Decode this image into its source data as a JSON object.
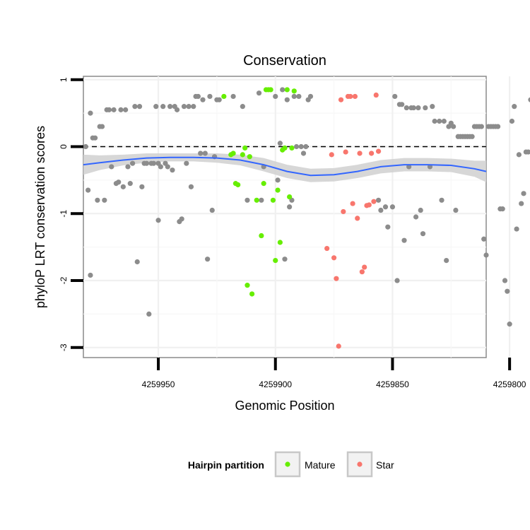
{
  "chart_data": {
    "type": "scatter",
    "title": "Conservation",
    "xlabel": "Genomic Position",
    "ylabel": "phyloP LRT conservation scores",
    "x_reversed": true,
    "xlim": [
      4259810,
      4259982
    ],
    "ylim": [
      -3.15,
      1.05
    ],
    "x_ticks": [
      4259950,
      4259900,
      4259850,
      4259800
    ],
    "x_tick_labels": [
      "4259950",
      "4259900",
      "4259850",
      "4259800"
    ],
    "y_ticks": [
      1,
      0,
      -1,
      -2,
      -3
    ],
    "y_tick_labels": [
      "1",
      "0",
      "-1",
      "-2",
      "-3"
    ],
    "reference_line": {
      "y": 0,
      "style": "dashed"
    },
    "grid": true,
    "legend": {
      "title": "Hairpin partition",
      "position": "bottom",
      "entries": [
        {
          "label": "Mature",
          "color": "#66ee00"
        },
        {
          "label": "Star",
          "color": "#f8766d"
        }
      ]
    },
    "colors": {
      "other": "#8c8c8c",
      "Mature": "#66ee00",
      "Star": "#f8766d",
      "smooth": "#3366ff",
      "band": "#d0d0d0"
    },
    "series": [
      {
        "name": "",
        "group": "other",
        "points": [
          [
            4259981,
            0
          ],
          [
            4259980,
            -0.65
          ],
          [
            4259979,
            0.5
          ],
          [
            4259979,
            -1.92
          ],
          [
            4259978,
            0.13
          ],
          [
            4259977,
            0.13
          ],
          [
            4259976,
            -0.8
          ],
          [
            4259975,
            0.3
          ],
          [
            4259974,
            0.3
          ],
          [
            4259973,
            -0.8
          ],
          [
            4259972,
            0.55
          ],
          [
            4259971,
            0.55
          ],
          [
            4259970,
            -0.3
          ],
          [
            4259969,
            0.55
          ],
          [
            4259968,
            -0.55
          ],
          [
            4259967,
            -0.53
          ],
          [
            4259966,
            0.55
          ],
          [
            4259965,
            -0.6
          ],
          [
            4259964,
            0.55
          ],
          [
            4259963,
            -0.3
          ],
          [
            4259962,
            -0.55
          ],
          [
            4259961,
            -0.25
          ],
          [
            4259960,
            0.6
          ],
          [
            4259959,
            -1.72
          ],
          [
            4259958,
            0.6
          ],
          [
            4259957,
            -0.6
          ],
          [
            4259956,
            -0.25
          ],
          [
            4259955,
            -0.25
          ],
          [
            4259954,
            -2.5
          ],
          [
            4259953,
            -0.25
          ],
          [
            4259952,
            -0.25
          ],
          [
            4259951,
            0.6
          ],
          [
            4259950,
            -0.25
          ],
          [
            4259950,
            -1.1
          ],
          [
            4259949,
            -0.3
          ],
          [
            4259948,
            0.6
          ],
          [
            4259947,
            -0.25
          ],
          [
            4259946,
            -0.3
          ],
          [
            4259945,
            0.6
          ],
          [
            4259944,
            -0.35
          ],
          [
            4259943,
            0.6
          ],
          [
            4259942,
            0.55
          ],
          [
            4259941,
            -1.12
          ],
          [
            4259940,
            -1.08
          ],
          [
            4259939,
            0.6
          ],
          [
            4259938,
            -0.25
          ],
          [
            4259937,
            0.6
          ],
          [
            4259936,
            -0.6
          ],
          [
            4259935,
            0.6
          ],
          [
            4259934,
            0.75
          ],
          [
            4259933,
            0.75
          ],
          [
            4259932,
            -0.1
          ],
          [
            4259931,
            0.7
          ],
          [
            4259930,
            -0.1
          ],
          [
            4259929,
            -1.68
          ],
          [
            4259928,
            0.75
          ],
          [
            4259927,
            -0.95
          ],
          [
            4259926,
            -0.15
          ],
          [
            4259925,
            0.7
          ],
          [
            4259924,
            0.7
          ],
          [
            4259918,
            0.75
          ],
          [
            4259914,
            0.6
          ],
          [
            4259912,
            -0.8
          ],
          [
            4259907,
            0.8
          ],
          [
            4259906,
            -0.8
          ],
          [
            4259905,
            -0.3
          ],
          [
            4259900,
            0.75
          ],
          [
            4259899,
            -0.5
          ],
          [
            4259898,
            0.05
          ],
          [
            4259897,
            0.85
          ],
          [
            4259896,
            -1.68
          ],
          [
            4259895,
            0.7
          ],
          [
            4259894,
            -0.9
          ],
          [
            4259893,
            -0.8
          ],
          [
            4259892,
            0.75
          ],
          [
            4259891,
            0
          ],
          [
            4259890,
            0.75
          ],
          [
            4259889,
            0
          ],
          [
            4259888,
            -0.1
          ],
          [
            4259887,
            0
          ],
          [
            4259886,
            0.7
          ],
          [
            4259885,
            0.75
          ],
          [
            4259856,
            -0.8
          ],
          [
            4259855,
            -0.95
          ],
          [
            4259853,
            -0.9
          ],
          [
            4259852,
            -1.2
          ],
          [
            4259850,
            -0.9
          ],
          [
            4259849,
            0.75
          ],
          [
            4259848,
            -2
          ],
          [
            4259847,
            0.63
          ],
          [
            4259846,
            0.63
          ],
          [
            4259845,
            -1.4
          ],
          [
            4259844,
            0.58
          ],
          [
            4259843,
            -0.3
          ],
          [
            4259842,
            0.58
          ],
          [
            4259841,
            0.58
          ],
          [
            4259840,
            -1.05
          ],
          [
            4259839,
            0.58
          ],
          [
            4259838,
            -0.95
          ],
          [
            4259837,
            -1.3
          ],
          [
            4259836,
            0.58
          ],
          [
            4259834,
            -0.3
          ],
          [
            4259833,
            0.6
          ],
          [
            4259832,
            0.38
          ],
          [
            4259830,
            0.38
          ],
          [
            4259829,
            -0.8
          ],
          [
            4259828,
            0.38
          ],
          [
            4259827,
            -1.7
          ],
          [
            4259826,
            0.3
          ],
          [
            4259825,
            0.35
          ],
          [
            4259824,
            0.3
          ],
          [
            4259823,
            -0.95
          ],
          [
            4259822,
            0.15
          ],
          [
            4259821,
            0.15
          ],
          [
            4259820,
            0.15
          ],
          [
            4259819,
            0.15
          ],
          [
            4259818,
            0.15
          ],
          [
            4259817,
            0.15
          ],
          [
            4259816,
            0.15
          ],
          [
            4259815,
            0.3
          ],
          [
            4259814,
            0.3
          ],
          [
            4259813,
            0.3
          ],
          [
            4259812,
            0.3
          ],
          [
            4259811,
            -1.38
          ],
          [
            4259810,
            -1.62
          ],
          [
            4259809,
            0.3
          ],
          [
            4259808,
            0.3
          ],
          [
            4259807,
            0.3
          ],
          [
            4259806,
            0.3
          ],
          [
            4259805,
            0.3
          ],
          [
            4259804,
            -0.93
          ],
          [
            4259803,
            -0.93
          ],
          [
            4259802,
            -2
          ],
          [
            4259801,
            -2.16
          ],
          [
            4259800,
            -2.65
          ],
          [
            4259799,
            0.38
          ],
          [
            4259798,
            0.6
          ],
          [
            4259797,
            -1.23
          ],
          [
            4259796,
            -0.12
          ],
          [
            4259795,
            -0.85
          ],
          [
            4259794,
            -0.7
          ],
          [
            4259793,
            -0.08
          ],
          [
            4259792,
            -0.08
          ],
          [
            4259791,
            0.7
          ]
        ]
      },
      {
        "name": "Mature",
        "group": "Mature",
        "points": [
          [
            4259922,
            0.75
          ],
          [
            4259919,
            -0.12
          ],
          [
            4259918,
            -0.1
          ],
          [
            4259917,
            -0.55
          ],
          [
            4259916,
            -0.57
          ],
          [
            4259914,
            -0.12
          ],
          [
            4259913,
            -0.02
          ],
          [
            4259912,
            -2.07
          ],
          [
            4259911,
            -0.15
          ],
          [
            4259910,
            -2.2
          ],
          [
            4259908,
            -0.8
          ],
          [
            4259906,
            -1.33
          ],
          [
            4259905,
            -0.55
          ],
          [
            4259904,
            0.85
          ],
          [
            4259903,
            0.85
          ],
          [
            4259902,
            0.85
          ],
          [
            4259901,
            -0.8
          ],
          [
            4259900,
            -1.7
          ],
          [
            4259899,
            -0.65
          ],
          [
            4259898,
            -1.43
          ],
          [
            4259897,
            -0.05
          ],
          [
            4259896,
            -0.02
          ],
          [
            4259895,
            0.85
          ],
          [
            4259894,
            -0.75
          ],
          [
            4259893,
            -0.02
          ],
          [
            4259892,
            0.83
          ]
        ]
      },
      {
        "name": "Star",
        "group": "Star",
        "points": [
          [
            4259878,
            -1.52
          ],
          [
            4259876,
            -0.12
          ],
          [
            4259875,
            -1.66
          ],
          [
            4259874,
            -1.97
          ],
          [
            4259873,
            -2.98
          ],
          [
            4259872,
            0.7
          ],
          [
            4259871,
            -0.97
          ],
          [
            4259870,
            -0.08
          ],
          [
            4259869,
            0.75
          ],
          [
            4259868,
            0.75
          ],
          [
            4259867,
            -0.85
          ],
          [
            4259866,
            0.75
          ],
          [
            4259865,
            -1.07
          ],
          [
            4259864,
            -0.1
          ],
          [
            4259863,
            -1.87
          ],
          [
            4259862,
            -1.8
          ],
          [
            4259861,
            -0.88
          ],
          [
            4259860,
            -0.87
          ],
          [
            4259859,
            -0.1
          ],
          [
            4259858,
            -0.82
          ],
          [
            4259857,
            0.77
          ],
          [
            4259856,
            -0.07
          ]
        ]
      }
    ],
    "smooth_curve": {
      "x": [
        4259982,
        4259975,
        4259965,
        4259955,
        4259945,
        4259935,
        4259925,
        4259915,
        4259905,
        4259895,
        4259885,
        4259875,
        4259865,
        4259855,
        4259845,
        4259835,
        4259825,
        4259815,
        4259810
      ],
      "y": [
        -0.27,
        -0.24,
        -0.2,
        -0.17,
        -0.16,
        -0.16,
        -0.17,
        -0.2,
        -0.27,
        -0.37,
        -0.43,
        -0.42,
        -0.37,
        -0.3,
        -0.27,
        -0.27,
        -0.28,
        -0.33,
        -0.37
      ],
      "band": [
        0.15,
        0.11,
        0.08,
        0.07,
        0.06,
        0.06,
        0.07,
        0.08,
        0.1,
        0.1,
        0.1,
        0.1,
        0.1,
        0.1,
        0.1,
        0.1,
        0.1,
        0.12,
        0.16
      ]
    }
  }
}
